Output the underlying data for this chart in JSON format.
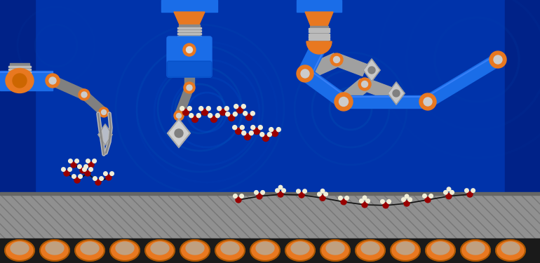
{
  "bg_color": "#0033aa",
  "arm_blue": "#1a6de8",
  "arm_blue_dark": "#0044cc",
  "arm_orange": "#e87820",
  "arm_gray": "#808080",
  "arm_gray_light": "#a0a0a0",
  "arm_gray_dark": "#505050",
  "molecule_red": "#990000",
  "molecule_white": "#f0eed8",
  "conveyor_gray": "#909090",
  "conveyor_stripe_dark": "#707070",
  "belt_black": "#1a1a1a",
  "roller_orange": "#e87820",
  "roller_dark": "#aa5500",
  "swirl_blue": "#1040c0",
  "figsize": [
    7.7,
    3.75
  ],
  "dpi": 100
}
